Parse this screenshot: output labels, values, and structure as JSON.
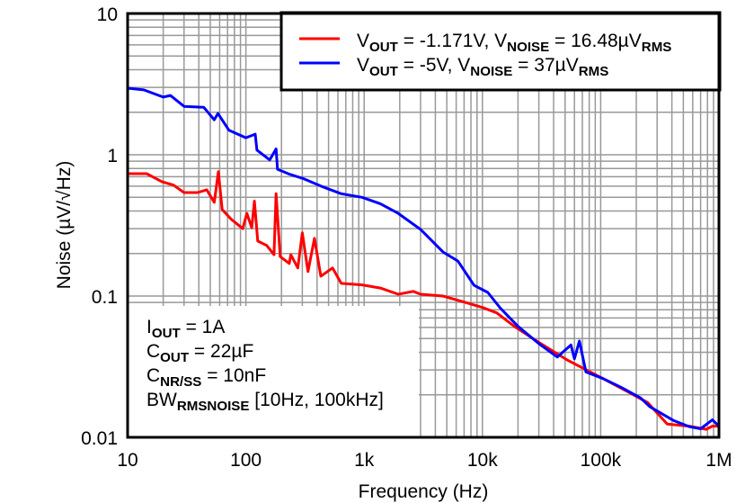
{
  "chart_data": {
    "type": "line",
    "xlabel": "Frequency (Hz)",
    "ylabel": "Noise (µV/√Hz)",
    "x_scale": "log",
    "y_scale": "log",
    "xlim": [
      10,
      1000000
    ],
    "ylim": [
      0.01,
      10
    ],
    "grid": true,
    "legend_position": "top-right",
    "x_ticks": [
      {
        "value": 10,
        "label": "10"
      },
      {
        "value": 100,
        "label": "100"
      },
      {
        "value": 1000,
        "label": "1k"
      },
      {
        "value": 10000,
        "label": "10k"
      },
      {
        "value": 100000,
        "label": "100k"
      },
      {
        "value": 1000000,
        "label": "1M"
      }
    ],
    "y_ticks": [
      {
        "value": 10,
        "label": "10"
      },
      {
        "value": 1,
        "label": "1"
      },
      {
        "value": 0.1,
        "label": "0.1"
      },
      {
        "value": 0.01,
        "label": "0.01"
      }
    ],
    "series": [
      {
        "name": "VOUT = -1.171V, VNOISE = 16.48µVRMS",
        "legend_segments": [
          {
            "t": "V",
            "sub": false
          },
          {
            "t": "OUT",
            "sub": true
          },
          {
            "t": " = -1.171V, V",
            "sub": false
          },
          {
            "t": "NOISE",
            "sub": true
          },
          {
            "t": " = 16.48µV",
            "sub": false
          },
          {
            "t": "RMS",
            "sub": true
          }
        ],
        "color": "#ff0000",
        "x": [
          10,
          14.5,
          19.5,
          24.4,
          30,
          39,
          46.6,
          54,
          58.5,
          63,
          75,
          94,
          102,
          112,
          118,
          126,
          150,
          173,
          180,
          195,
          233,
          240,
          275,
          300,
          335,
          380,
          430,
          540,
          640,
          960,
          1370,
          1940,
          2600,
          3000,
          4650,
          6600,
          10000,
          13200,
          18600,
          30000,
          53000,
          105000,
          170000,
          250000,
          365000,
          560000,
          780000,
          880000,
          1000000
        ],
        "y": [
          0.735,
          0.735,
          0.645,
          0.61,
          0.54,
          0.54,
          0.565,
          0.46,
          0.76,
          0.41,
          0.35,
          0.3,
          0.385,
          0.305,
          0.47,
          0.245,
          0.228,
          0.196,
          0.53,
          0.19,
          0.17,
          0.196,
          0.158,
          0.28,
          0.149,
          0.256,
          0.138,
          0.158,
          0.123,
          0.12,
          0.114,
          0.103,
          0.108,
          0.103,
          0.1,
          0.092,
          0.083,
          0.076,
          0.061,
          0.047,
          0.035,
          0.026,
          0.021,
          0.0176,
          0.0124,
          0.012,
          0.0114,
          0.012,
          0.012
        ]
      },
      {
        "name": "VOUT = -5V, VNOISE = 37µVRMS",
        "legend_segments": [
          {
            "t": "V",
            "sub": false
          },
          {
            "t": "OUT",
            "sub": true
          },
          {
            "t": " = -5V, V",
            "sub": false
          },
          {
            "t": "NOISE",
            "sub": true
          },
          {
            "t": " = 37µV",
            "sub": false
          },
          {
            "t": "RMS",
            "sub": true
          }
        ],
        "color": "#0000ff",
        "x": [
          10,
          13.7,
          20,
          23,
          30,
          44,
          54,
          58,
          72,
          100,
          120,
          124,
          159,
          180,
          185,
          233,
          303,
          430,
          640,
          960,
          1370,
          1940,
          3000,
          4650,
          6200,
          8500,
          11100,
          14200,
          20000,
          30000,
          43000,
          56000,
          60000,
          66000,
          75000,
          105000,
          150000,
          217000,
          260000,
          410000,
          560000,
          700000,
          880000,
          1000000
        ],
        "y": [
          2.96,
          2.88,
          2.56,
          2.63,
          2.2,
          2.17,
          1.77,
          1.96,
          1.49,
          1.32,
          1.4,
          1.08,
          0.92,
          1.1,
          0.79,
          0.73,
          0.68,
          0.6,
          0.53,
          0.5,
          0.45,
          0.385,
          0.296,
          0.205,
          0.177,
          0.119,
          0.106,
          0.082,
          0.061,
          0.046,
          0.037,
          0.045,
          0.036,
          0.048,
          0.029,
          0.026,
          0.0225,
          0.019,
          0.0165,
          0.0132,
          0.0119,
          0.0115,
          0.0133,
          0.012
        ]
      }
    ],
    "annotation_lines": [
      [
        {
          "t": "I",
          "sub": false
        },
        {
          "t": "OUT",
          "sub": true
        },
        {
          "t": " = 1A",
          "sub": false
        }
      ],
      [
        {
          "t": "C",
          "sub": false
        },
        {
          "t": "OUT",
          "sub": true
        },
        {
          "t": " = 22µF",
          "sub": false
        }
      ],
      [
        {
          "t": "C",
          "sub": false
        },
        {
          "t": "NR/SS",
          "sub": true
        },
        {
          "t": " = 10nF",
          "sub": false
        }
      ],
      [
        {
          "t": "BW",
          "sub": false
        },
        {
          "t": "RMSNOISE",
          "sub": true
        },
        {
          "t": " [10Hz, 100kHz]",
          "sub": false
        }
      ]
    ],
    "grid_color": "#999999"
  }
}
